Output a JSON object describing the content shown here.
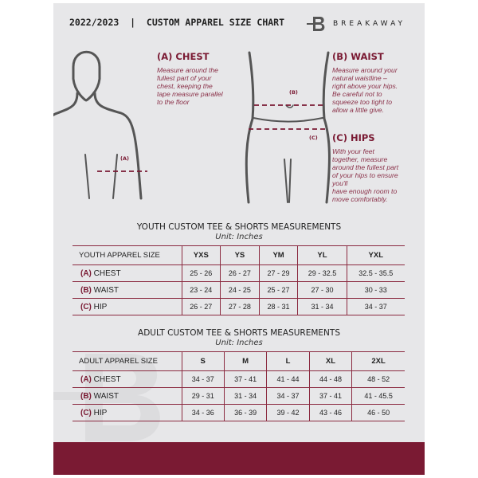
{
  "header": {
    "title": "2022/2023  |  CUSTOM APPAREL SIZE CHART",
    "brand": "BREAKAWAY",
    "logo_letter": "B"
  },
  "guides": {
    "chest": {
      "heading": "(A) CHEST",
      "marker": "(A)",
      "text": [
        "Measure around the",
        "fullest part of your",
        "chest, keeping the",
        "tape measure parallel",
        "to the floor"
      ]
    },
    "waist": {
      "heading": "(B) WAIST",
      "marker": "(B)",
      "text": [
        "Measure around your",
        "natural waistline –",
        "right above your hips.",
        "Be careful not to",
        "squeeze too tight to",
        "allow a little give."
      ]
    },
    "hips": {
      "heading": "(C) HIPS",
      "marker": "(C)",
      "text": [
        "With your feet",
        "together, measure",
        "around the fullest part",
        "of your hips to ensure",
        "you'll",
        "have enough room to",
        "move comfortably."
      ]
    }
  },
  "tables": [
    {
      "title": "YOUTH CUSTOM TEE & SHORTS MEASUREMENTS",
      "unit": "Unit: Inches",
      "header": "YOUTH APPAREL SIZE",
      "sizes": [
        "YXS",
        "YS",
        "YM",
        "YL",
        "YXL"
      ],
      "rows": [
        {
          "code": "(A)",
          "name": "CHEST",
          "values": [
            "25 - 26",
            "26 - 27",
            "27 - 29",
            "29 - 32.5",
            "32.5 - 35.5"
          ]
        },
        {
          "code": "(B)",
          "name": "WAIST",
          "values": [
            "23 - 24",
            "24 - 25",
            "25 - 27",
            "27 - 30",
            "30 - 33"
          ]
        },
        {
          "code": "(C)",
          "name": "HIP",
          "values": [
            "26 - 27",
            "27 - 28",
            "28 - 31",
            "31 - 34",
            "34 - 37"
          ]
        }
      ]
    },
    {
      "title": "ADULT CUSTOM TEE & SHORTS MEASUREMENTS",
      "unit": "Unit: Inches",
      "header": "ADULT APPAREL SIZE",
      "sizes": [
        "S",
        "M",
        "L",
        "XL",
        "2XL"
      ],
      "rows": [
        {
          "code": "(A)",
          "name": "CHEST",
          "values": [
            "34 - 37",
            "37 - 41",
            "41 - 44",
            "44 - 48",
            "48 - 52"
          ]
        },
        {
          "code": "(B)",
          "name": "WAIST",
          "values": [
            "29 - 31",
            "31 - 34",
            "34 - 37",
            "37 - 41",
            "41 - 45.5"
          ]
        },
        {
          "code": "(C)",
          "name": "HIP",
          "values": [
            "34 - 36",
            "36 - 39",
            "39 - 42",
            "43 - 46",
            "46 - 50"
          ]
        }
      ]
    }
  ],
  "colors": {
    "accent": "#7a1a33",
    "panel": "#e7e7e9"
  }
}
